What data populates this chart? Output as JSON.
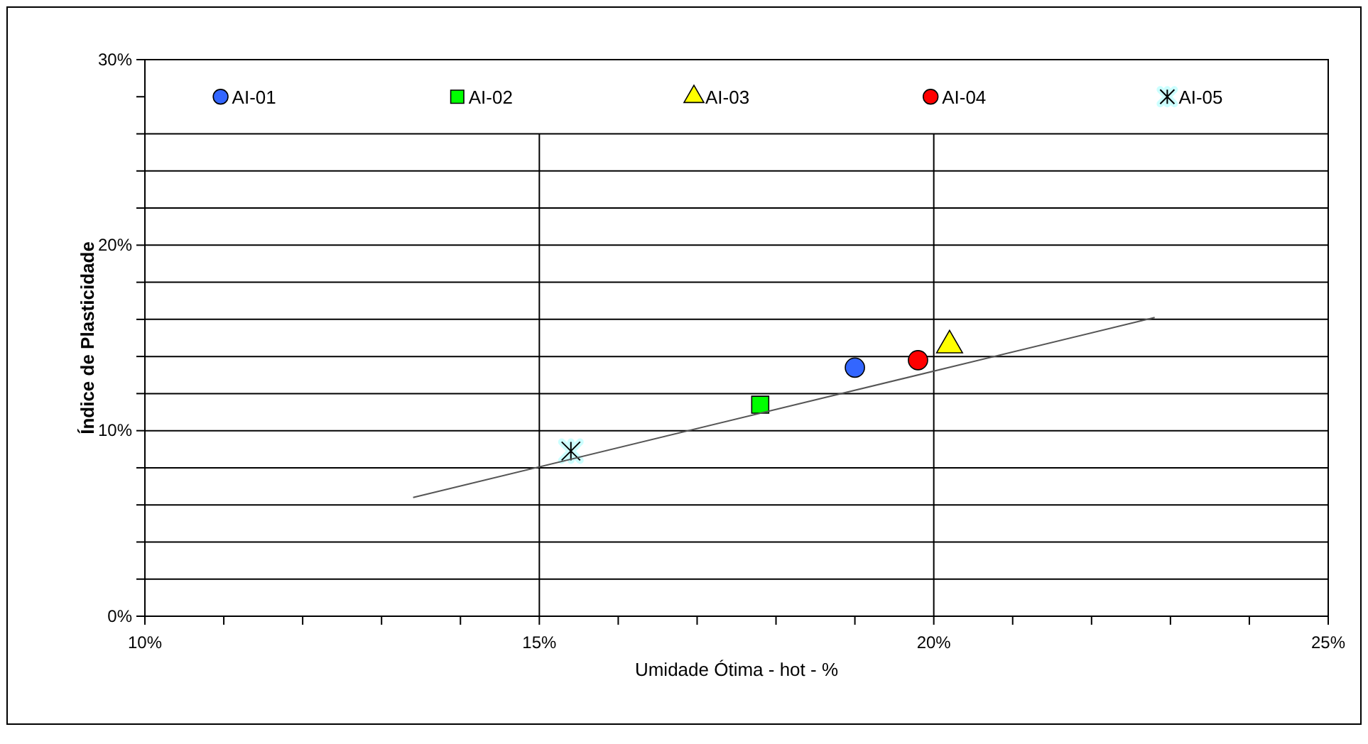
{
  "chart_data": {
    "type": "scatter",
    "xlabel": "Umidade Ótima - hot - %",
    "ylabel": "Índice de Plasticidade",
    "xlim": [
      10,
      25
    ],
    "xticks": [
      {
        "value": 10,
        "label": "10%"
      },
      {
        "value": 11,
        "label": null
      },
      {
        "value": 12,
        "label": null
      },
      {
        "value": 13,
        "label": null
      },
      {
        "value": 14,
        "label": null
      },
      {
        "value": 15,
        "label": "15%"
      },
      {
        "value": 16,
        "label": null
      },
      {
        "value": 17,
        "label": null
      },
      {
        "value": 18,
        "label": null
      },
      {
        "value": 19,
        "label": null
      },
      {
        "value": 20,
        "label": "20%"
      },
      {
        "value": 21,
        "label": null
      },
      {
        "value": 22,
        "label": null
      },
      {
        "value": 23,
        "label": null
      },
      {
        "value": 24,
        "label": null
      },
      {
        "value": 25,
        "label": "25%"
      }
    ],
    "ylim": [
      0,
      30
    ],
    "yticks": [
      {
        "value": 0,
        "label": "0%"
      },
      {
        "value": 2,
        "label": null
      },
      {
        "value": 4,
        "label": null
      },
      {
        "value": 6,
        "label": null
      },
      {
        "value": 8,
        "label": null
      },
      {
        "value": 10,
        "label": "10%"
      },
      {
        "value": 12,
        "label": null
      },
      {
        "value": 14,
        "label": null
      },
      {
        "value": 16,
        "label": null
      },
      {
        "value": 18,
        "label": null
      },
      {
        "value": 20,
        "label": "20%"
      },
      {
        "value": 22,
        "label": null
      },
      {
        "value": 24,
        "label": null
      },
      {
        "value": 26,
        "label": null
      },
      {
        "value": 28,
        "label": null
      },
      {
        "value": 30,
        "label": "30%"
      }
    ],
    "grid": true,
    "legend": "top",
    "series": [
      {
        "name": "AI-01",
        "color": "#3366ff",
        "marker": "circle",
        "x": [
          19.0
        ],
        "values": [
          13.4
        ]
      },
      {
        "name": "AI-02",
        "color": "#00ff00",
        "marker": "square",
        "x": [
          17.8
        ],
        "values": [
          11.4
        ]
      },
      {
        "name": "AI-03",
        "color": "#ffff00",
        "marker": "triangle",
        "x": [
          20.2
        ],
        "values": [
          14.6
        ]
      },
      {
        "name": "AI-04",
        "color": "#ff0000",
        "marker": "circle",
        "x": [
          19.8
        ],
        "values": [
          13.8
        ]
      },
      {
        "name": "AI-05",
        "color": "#ccffff",
        "marker": "cross",
        "x": [
          15.4
        ],
        "values": [
          8.9
        ]
      },
      {
        "type": "line",
        "color": "#555555",
        "marker": "none",
        "x": [
          13.4,
          22.8
        ],
        "values": [
          6.4,
          16.1
        ]
      }
    ]
  }
}
